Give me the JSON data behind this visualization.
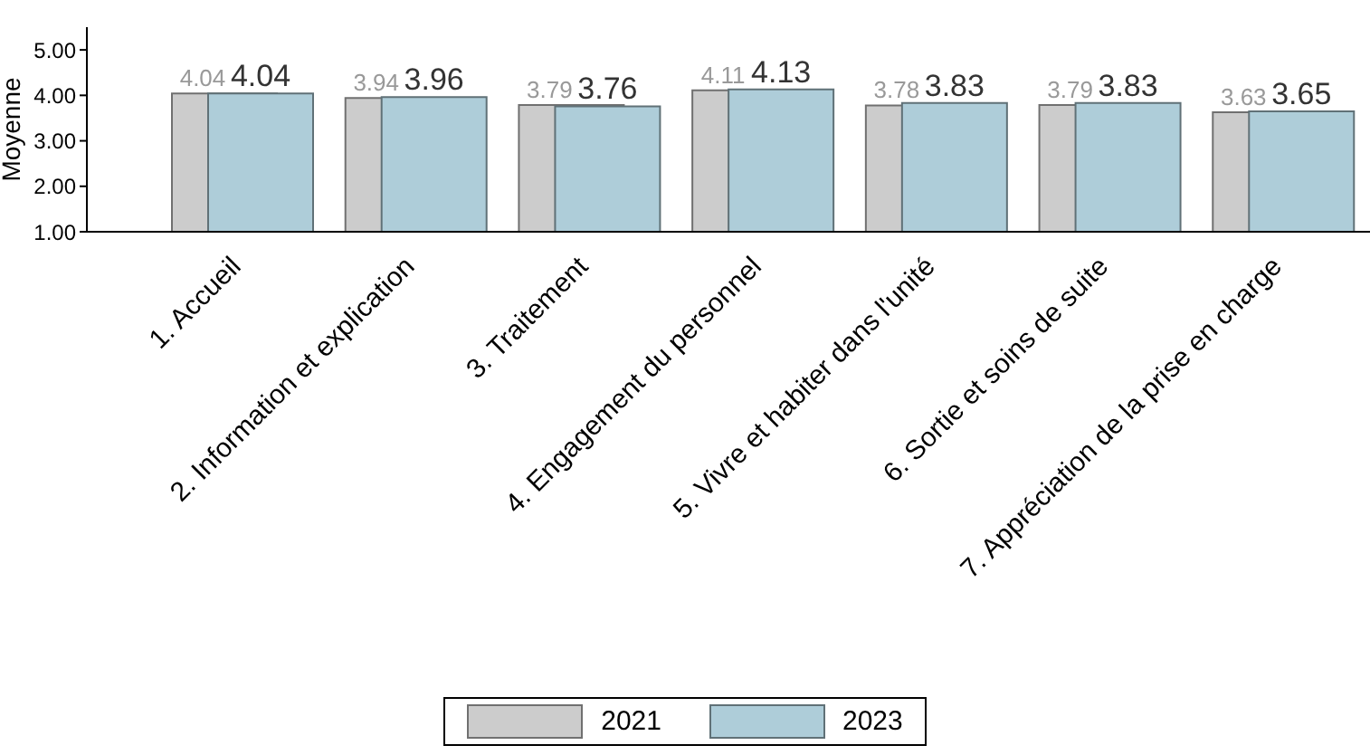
{
  "chart_data": {
    "type": "bar",
    "ylabel": "Moyenne",
    "categories": [
      "1. Accueil",
      "2. Information et explication",
      "3. Traitement",
      "4. Engagement du personnel",
      "5. Vivre et habiter dans l'unité",
      "6. Sortie et soins de suite",
      "7. Appréciation de la prise en charge"
    ],
    "series": [
      {
        "name": "2021",
        "color": "#cccccc",
        "values": [
          4.04,
          3.94,
          3.79,
          4.11,
          3.78,
          3.79,
          3.63
        ],
        "value_labels": [
          "4.04",
          "3.94",
          "3.79",
          "4.11",
          "3.78",
          "3.79",
          "3.63"
        ]
      },
      {
        "name": "2023",
        "color": "#aecdd9",
        "values": [
          4.04,
          3.96,
          3.76,
          4.13,
          3.83,
          3.83,
          3.65
        ],
        "value_labels": [
          "4.04",
          "3.96",
          "3.76",
          "4.13",
          "3.83",
          "3.83",
          "3.65"
        ]
      }
    ],
    "ylim": [
      1,
      5.5
    ],
    "yticks": [
      {
        "value": 1,
        "label": "1.00"
      },
      {
        "value": 2,
        "label": "2.00"
      },
      {
        "value": 3,
        "label": "3.00"
      },
      {
        "value": 4,
        "label": "4.00"
      },
      {
        "value": 5,
        "label": "5.00"
      }
    ],
    "grid": false,
    "legend": "bottom"
  }
}
